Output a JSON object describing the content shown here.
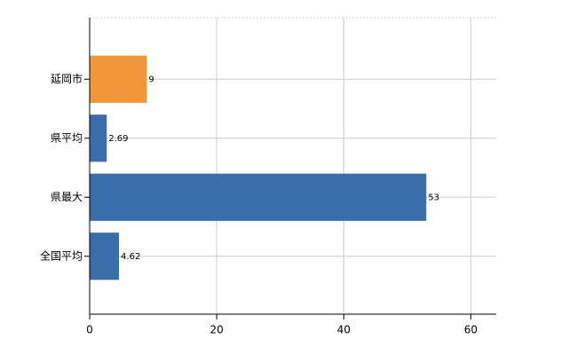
{
  "chart_data": {
    "type": "bar",
    "orientation": "horizontal",
    "categories": [
      "延岡市",
      "県平均",
      "県最大",
      "全国平均"
    ],
    "values": [
      9,
      2.69,
      53,
      4.62
    ],
    "colors": [
      "#f0963a",
      "#3a6eaa",
      "#3a6eaa",
      "#3a6eaa"
    ],
    "xlim": [
      0,
      64
    ],
    "xticks": [
      0,
      20,
      40,
      60
    ],
    "grid": true
  }
}
